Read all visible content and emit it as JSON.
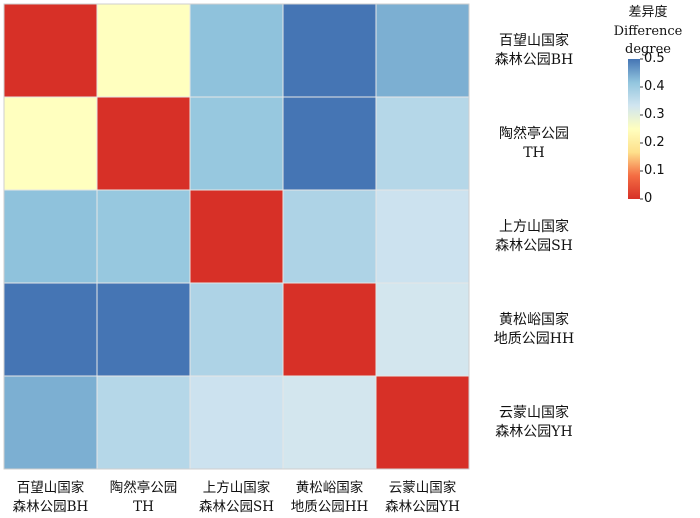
{
  "chart_data": {
    "type": "heatmap",
    "rows": [
      [
        "百望山国家",
        "森林公园BH"
      ],
      [
        "陶然亭公园",
        "TH"
      ],
      [
        "上方山国家",
        "森林公园SH"
      ],
      [
        "黄松峪国家",
        "地质公园HH"
      ],
      [
        "云蒙山国家",
        "森林公园YH"
      ]
    ],
    "columns": [
      [
        "百望山国家",
        "森林公园BH"
      ],
      [
        "陶然亭公园",
        "TH"
      ],
      [
        "上方山国家",
        "森林公园SH"
      ],
      [
        "黄松峪国家",
        "地质公园HH"
      ],
      [
        "云蒙山国家",
        "森林公园YH"
      ]
    ],
    "values": [
      [
        0.0,
        0.25,
        0.42,
        0.5,
        0.44
      ],
      [
        0.25,
        0.0,
        0.41,
        0.5,
        0.37
      ],
      [
        0.42,
        0.41,
        0.0,
        0.38,
        0.34
      ],
      [
        0.5,
        0.5,
        0.38,
        0.0,
        0.33
      ],
      [
        0.44,
        0.37,
        0.34,
        0.33,
        0.0
      ]
    ],
    "legend": {
      "title": [
        "差异度",
        "Difference degree"
      ],
      "ticks": [
        "0.5",
        "0.4",
        "0.3",
        "0.2",
        "0.1",
        "0"
      ],
      "range": [
        0,
        0.5
      ],
      "colors": [
        "#d73027",
        "#f46d43",
        "#fee08b",
        "#ffffbf",
        "#d1e5f0",
        "#92c5de",
        "#4575b4"
      ]
    }
  }
}
